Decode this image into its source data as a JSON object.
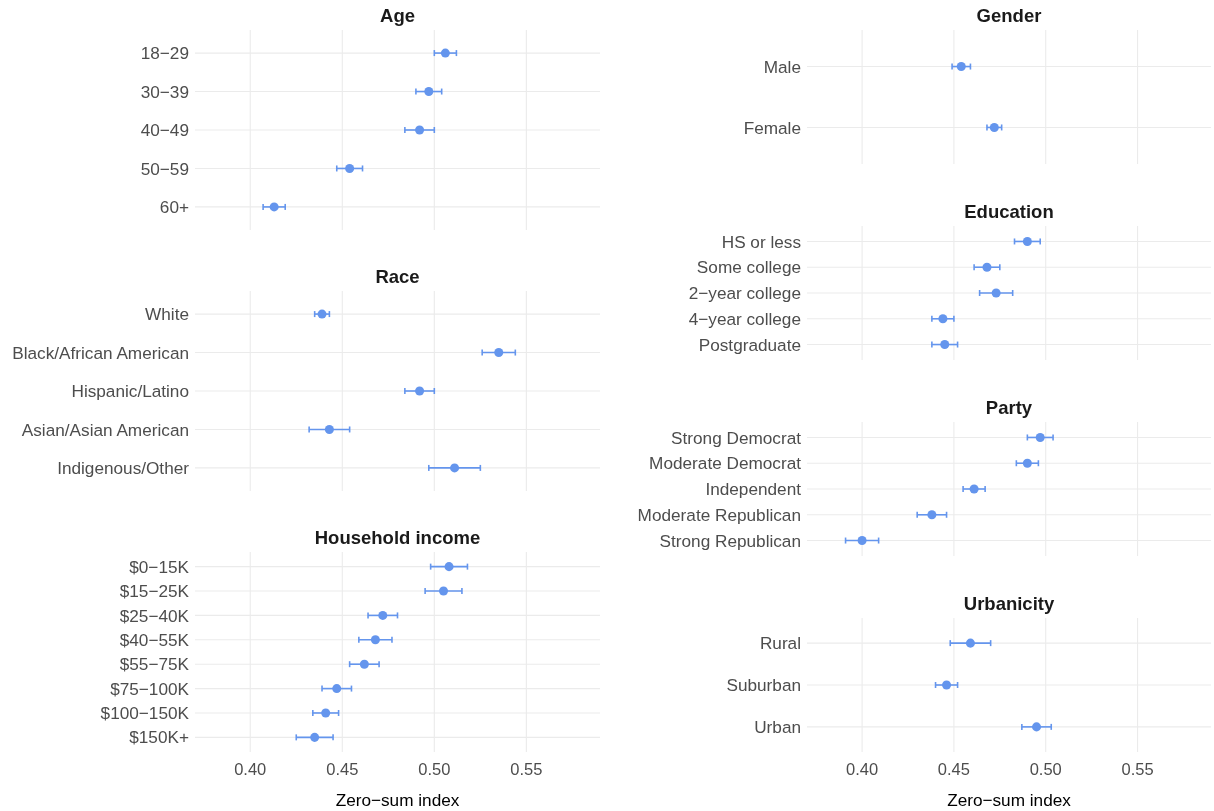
{
  "chart_data": [
    {
      "type": "scatter",
      "title": "Age",
      "orientation": "horizontal",
      "categories": [
        "18−29",
        "30−39",
        "40−49",
        "50−59",
        "60+"
      ],
      "values": [
        0.506,
        0.497,
        0.492,
        0.454,
        0.413
      ],
      "errors": [
        0.006,
        0.007,
        0.008,
        0.007,
        0.006
      ],
      "color": "#6495ed",
      "marker": "circle",
      "xlim": [
        0.37,
        0.59
      ],
      "xticks": [
        0.4,
        0.45,
        0.5,
        0.55
      ],
      "grid": true,
      "tick_labels": "y"
    },
    {
      "type": "scatter",
      "title": "Race",
      "orientation": "horizontal",
      "categories": [
        "White",
        "Black/African American",
        "Hispanic/Latino",
        "Asian/Asian American",
        "Indigenous/Other"
      ],
      "values": [
        0.439,
        0.535,
        0.492,
        0.443,
        0.511
      ],
      "errors": [
        0.004,
        0.009,
        0.008,
        0.011,
        0.014
      ],
      "color": "#6495ed",
      "marker": "circle",
      "xlim": [
        0.37,
        0.59
      ],
      "xticks": [
        0.4,
        0.45,
        0.5,
        0.55
      ],
      "grid": true,
      "tick_labels": "y"
    },
    {
      "type": "scatter",
      "title": "Household income",
      "xlabel": "Zero−sum index",
      "orientation": "horizontal",
      "categories": [
        "$0−15K",
        "$15−25K",
        "$25−40K",
        "$40−55K",
        "$55−75K",
        "$75−100K",
        "$100−150K",
        "$150K+"
      ],
      "values": [
        0.508,
        0.505,
        0.472,
        0.468,
        0.462,
        0.447,
        0.441,
        0.435
      ],
      "errors": [
        0.01,
        0.01,
        0.008,
        0.009,
        0.008,
        0.008,
        0.007,
        0.01
      ],
      "color": "#6495ed",
      "marker": "circle",
      "xlim": [
        0.37,
        0.59
      ],
      "xticks": [
        {
          "value": 0.4,
          "label": "0.40"
        },
        {
          "value": 0.45,
          "label": "0.45"
        },
        {
          "value": 0.5,
          "label": "0.50"
        },
        {
          "value": 0.55,
          "label": "0.55"
        }
      ],
      "grid": true
    },
    {
      "type": "scatter",
      "title": "Gender",
      "orientation": "horizontal",
      "categories": [
        "Male",
        "Female"
      ],
      "values": [
        0.454,
        0.472
      ],
      "errors": [
        0.005,
        0.004
      ],
      "color": "#6495ed",
      "marker": "circle",
      "xlim": [
        0.37,
        0.59
      ],
      "xticks": [
        0.4,
        0.45,
        0.5,
        0.55
      ],
      "grid": true,
      "tick_labels": "y"
    },
    {
      "type": "scatter",
      "title": "Education",
      "orientation": "horizontal",
      "categories": [
        "HS or less",
        "Some college",
        "2−year college",
        "4−year college",
        "Postgraduate"
      ],
      "values": [
        0.49,
        0.468,
        0.473,
        0.444,
        0.445
      ],
      "errors": [
        0.007,
        0.007,
        0.009,
        0.006,
        0.007
      ],
      "color": "#6495ed",
      "marker": "circle",
      "xlim": [
        0.37,
        0.59
      ],
      "xticks": [
        0.4,
        0.45,
        0.5,
        0.55
      ],
      "grid": true,
      "tick_labels": "y"
    },
    {
      "type": "scatter",
      "title": "Party",
      "orientation": "horizontal",
      "categories": [
        "Strong Democrat",
        "Moderate Democrat",
        "Independent",
        "Moderate Republican",
        "Strong Republican"
      ],
      "values": [
        0.497,
        0.49,
        0.461,
        0.438,
        0.4
      ],
      "errors": [
        0.007,
        0.006,
        0.006,
        0.008,
        0.009
      ],
      "color": "#6495ed",
      "marker": "circle",
      "xlim": [
        0.37,
        0.59
      ],
      "xticks": [
        0.4,
        0.45,
        0.5,
        0.55
      ],
      "grid": true,
      "tick_labels": "y"
    },
    {
      "type": "scatter",
      "title": "Urbanicity",
      "xlabel": "Zero−sum index",
      "orientation": "horizontal",
      "categories": [
        "Rural",
        "Suburban",
        "Urban"
      ],
      "values": [
        0.459,
        0.446,
        0.495
      ],
      "errors": [
        0.011,
        0.006,
        0.008
      ],
      "color": "#6495ed",
      "marker": "circle",
      "xlim": [
        0.37,
        0.59
      ],
      "xticks": [
        {
          "value": 0.4,
          "label": "0.40"
        },
        {
          "value": 0.45,
          "label": "0.45"
        },
        {
          "value": 0.5,
          "label": "0.50"
        },
        {
          "value": 0.55,
          "label": "0.55"
        }
      ],
      "grid": true
    }
  ]
}
